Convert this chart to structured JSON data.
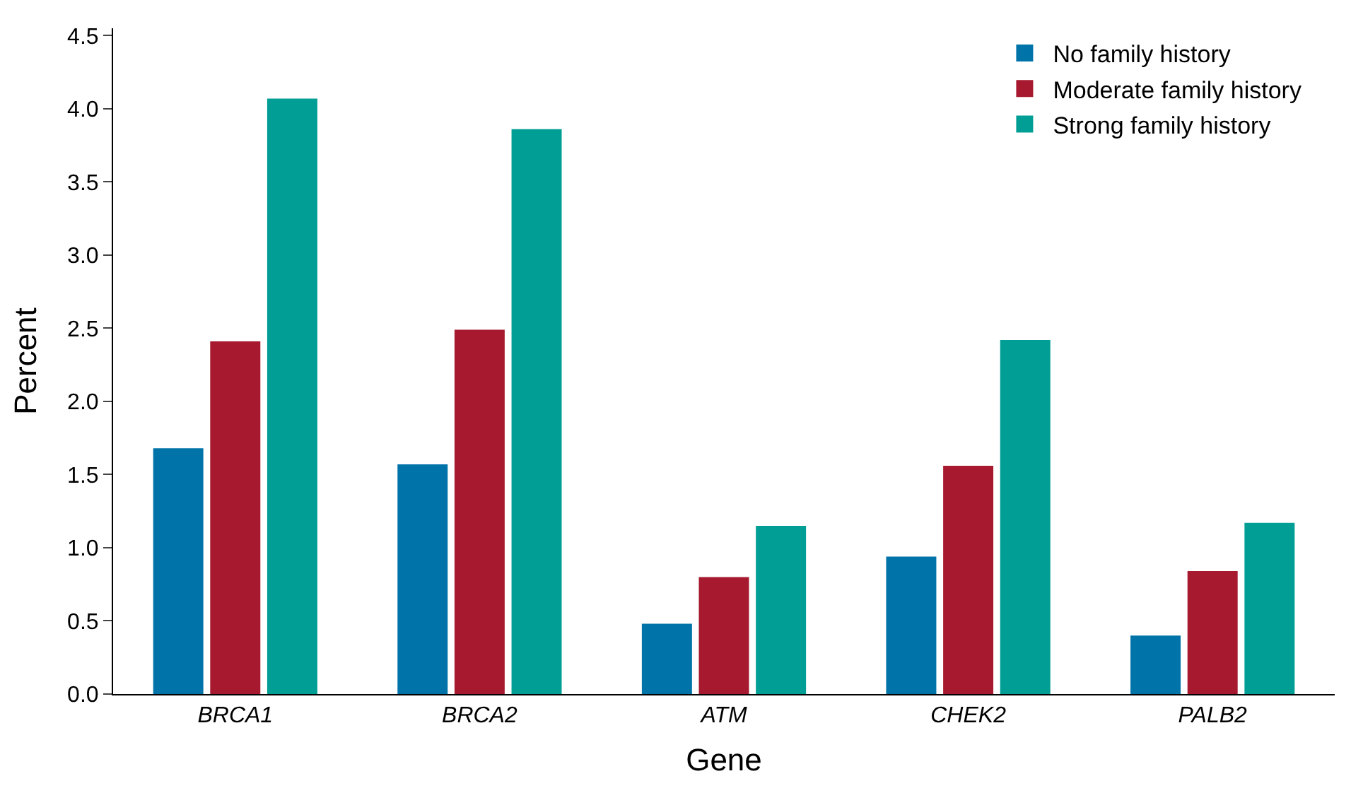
{
  "chart_data": {
    "type": "bar",
    "xlabel": "Gene",
    "ylabel": "Percent",
    "categories": [
      "BRCA1",
      "BRCA2",
      "ATM",
      "CHEK2",
      "PALB2"
    ],
    "series": [
      {
        "name": "No family history",
        "color": "#0073a8",
        "values": [
          1.68,
          1.57,
          0.48,
          0.94,
          0.4
        ]
      },
      {
        "name": "Moderate family history",
        "color": "#a6192e",
        "values": [
          2.41,
          2.49,
          0.8,
          1.56,
          0.84
        ]
      },
      {
        "name": "Strong family history",
        "color": "#009e94",
        "values": [
          4.07,
          3.86,
          1.15,
          2.42,
          1.17
        ]
      }
    ],
    "ylim": [
      0,
      4.55
    ],
    "yticks": [
      {
        "value": 0,
        "label": "0.0"
      },
      0.5,
      {
        "value": 1,
        "label": "1.0"
      },
      1.5,
      {
        "value": 2,
        "label": "2.0"
      },
      2.5,
      {
        "value": 3,
        "label": "3.0"
      },
      3.5,
      {
        "value": 4,
        "label": "4.0"
      },
      4.5
    ],
    "grid": false,
    "legend": "top right"
  }
}
